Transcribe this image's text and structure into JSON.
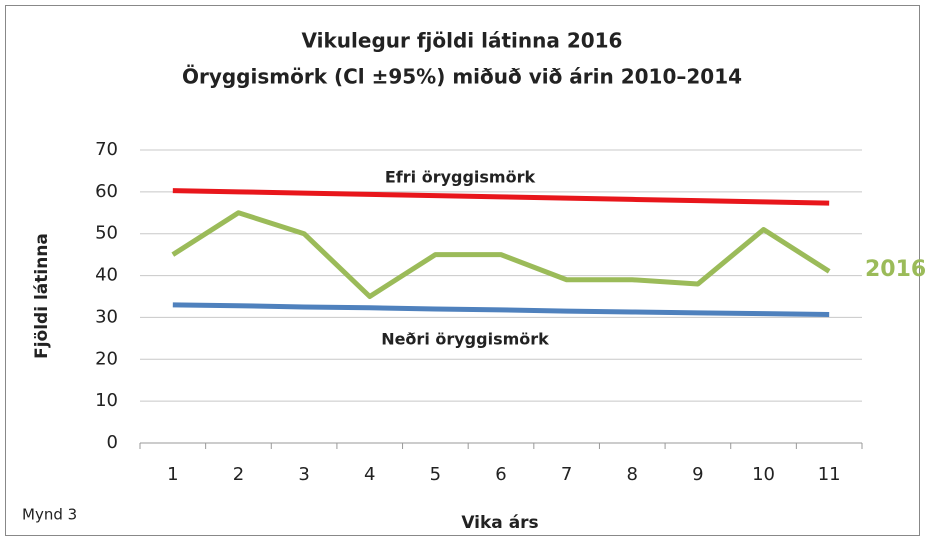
{
  "chart_data": {
    "type": "line",
    "title": "Vikulegur fjöldi látinna 2016",
    "subtitle": "Öryggismörk (Cl ±95%) miðuð við árin 2010–2014",
    "x_label": "Vika árs",
    "y_label": "Fjöldi látinna",
    "annotation": "Mynd 3",
    "categories": [
      "1",
      "2",
      "3",
      "4",
      "5",
      "6",
      "7",
      "8",
      "9",
      "10",
      "11"
    ],
    "series": [
      {
        "name": "Efri öryggismörk",
        "color": "#e8161b",
        "values": [
          60.3,
          60,
          59.7,
          59.4,
          59.1,
          58.8,
          58.5,
          58.2,
          57.9,
          57.6,
          57.3
        ]
      },
      {
        "name": "2016",
        "color": "#9bbb59",
        "values": [
          45,
          55,
          50,
          35,
          45,
          45,
          39,
          39,
          38,
          51,
          41
        ]
      },
      {
        "name": "Neðri öryggismörk",
        "color": "#4f81bd",
        "values": [
          33,
          32.8,
          32.5,
          32.3,
          32,
          31.8,
          31.5,
          31.3,
          31.1,
          30.9,
          30.7
        ]
      }
    ],
    "ylim": [
      0,
      70
    ],
    "yticks": [
      0,
      10,
      20,
      30,
      40,
      50,
      60,
      70
    ],
    "grid": true
  }
}
